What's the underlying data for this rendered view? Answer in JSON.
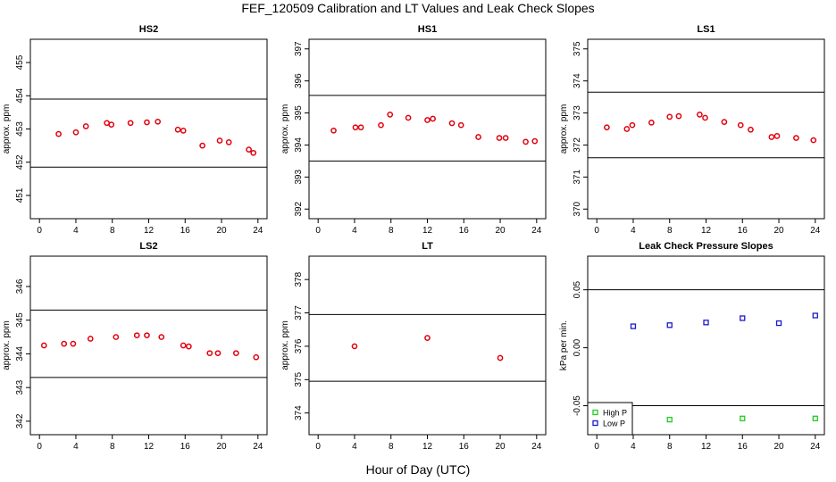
{
  "title": "FEF_120509  Calibration and LT Values and Leak Check Slopes",
  "xlabel": "Hour of Day (UTC)",
  "colors": {
    "marker_red": "#e0000d",
    "high_p": "#22cc22",
    "low_p": "#1a1acc",
    "axis": "#000000"
  },
  "chart_data": [
    {
      "type": "scatter",
      "title": "HS2",
      "ylabel": "approx. ppm",
      "xlim": [
        -1,
        25
      ],
      "ylim": [
        450.3,
        455.7
      ],
      "xticks": [
        0,
        4,
        8,
        12,
        16,
        20,
        24
      ],
      "yticks": [
        451,
        452,
        453,
        454,
        455
      ],
      "hlines": [
        451.85,
        453.9
      ],
      "series": [
        {
          "color": "#e0000d",
          "x": [
            2.1,
            4.0,
            5.1,
            7.4,
            7.9,
            10.0,
            11.8,
            13.0,
            15.2,
            15.8,
            17.9,
            19.8,
            20.8,
            23.0,
            23.5
          ],
          "y": [
            452.85,
            452.9,
            453.08,
            453.18,
            453.13,
            453.18,
            453.2,
            453.22,
            452.98,
            452.95,
            452.5,
            452.65,
            452.6,
            452.38,
            452.28
          ]
        }
      ]
    },
    {
      "type": "scatter",
      "title": "HS1",
      "ylabel": "approx. ppm",
      "xlim": [
        -1,
        25
      ],
      "ylim": [
        391.7,
        397.3
      ],
      "xticks": [
        0,
        4,
        8,
        12,
        16,
        20,
        24
      ],
      "yticks": [
        392,
        393,
        394,
        395,
        396,
        397
      ],
      "hlines": [
        393.5,
        395.55
      ],
      "series": [
        {
          "color": "#e0000d",
          "x": [
            1.7,
            4.1,
            4.7,
            6.9,
            7.9,
            9.9,
            12.0,
            12.6,
            14.7,
            15.7,
            17.6,
            19.9,
            20.6,
            22.8,
            23.8
          ],
          "y": [
            394.45,
            394.55,
            394.55,
            394.62,
            394.95,
            394.85,
            394.78,
            394.82,
            394.68,
            394.62,
            394.25,
            394.22,
            394.22,
            394.1,
            394.12
          ]
        }
      ]
    },
    {
      "type": "scatter",
      "title": "LS1",
      "ylabel": "approx. ppm",
      "xlim": [
        -1,
        25
      ],
      "ylim": [
        369.7,
        375.3
      ],
      "xticks": [
        0,
        4,
        8,
        12,
        16,
        20,
        24
      ],
      "yticks": [
        370,
        371,
        372,
        373,
        374,
        375
      ],
      "hlines": [
        371.6,
        373.65
      ],
      "series": [
        {
          "color": "#e0000d",
          "x": [
            1.1,
            3.3,
            3.9,
            6.0,
            8.0,
            9.0,
            11.3,
            11.9,
            14.0,
            15.8,
            16.9,
            19.2,
            19.8,
            21.9,
            23.8
          ],
          "y": [
            372.55,
            372.5,
            372.62,
            372.7,
            372.88,
            372.9,
            372.95,
            372.85,
            372.72,
            372.62,
            372.48,
            372.25,
            372.28,
            372.22,
            372.15
          ]
        }
      ]
    },
    {
      "type": "scatter",
      "title": "LS2",
      "ylabel": "approx. ppm",
      "xlim": [
        -1,
        25
      ],
      "ylim": [
        341.6,
        346.9
      ],
      "xticks": [
        0,
        4,
        8,
        12,
        16,
        20,
        24
      ],
      "yticks": [
        342,
        343,
        344,
        345,
        346
      ],
      "hlines": [
        343.3,
        345.3
      ],
      "series": [
        {
          "color": "#e0000d",
          "x": [
            0.5,
            2.7,
            3.7,
            5.6,
            8.4,
            10.7,
            11.8,
            13.4,
            15.8,
            16.4,
            18.7,
            19.6,
            21.6,
            23.8
          ],
          "y": [
            344.25,
            344.3,
            344.3,
            344.45,
            344.5,
            344.55,
            344.55,
            344.5,
            344.25,
            344.22,
            344.02,
            344.02,
            344.02,
            343.9
          ]
        }
      ]
    },
    {
      "type": "scatter",
      "title": "LT",
      "ylabel": "approx. ppm",
      "xlim": [
        -1,
        25
      ],
      "ylim": [
        373.35,
        378.7
      ],
      "xticks": [
        0,
        4,
        8,
        12,
        16,
        20,
        24
      ],
      "yticks": [
        374,
        375,
        376,
        377,
        378
      ],
      "hlines": [
        374.95,
        376.95
      ],
      "series": [
        {
          "color": "#e0000d",
          "x": [
            4.0,
            12.0,
            20.0
          ],
          "y": [
            376.0,
            376.25,
            375.65
          ]
        }
      ]
    },
    {
      "type": "scatter",
      "title": "Leak Check Pressure Slopes",
      "ylabel": "kPa per min.",
      "xlim": [
        -1,
        25
      ],
      "ylim": [
        -0.075,
        0.079
      ],
      "xticks": [
        0,
        4,
        8,
        12,
        16,
        20,
        24
      ],
      "yticks": [
        -0.05,
        0.0,
        0.05
      ],
      "ytick_labels": [
        "-0.05",
        "0.00",
        "0.05"
      ],
      "hlines": [
        -0.05,
        0.05
      ],
      "legend": {
        "placement": "bottom-left",
        "entries": [
          "High P",
          "Low P"
        ]
      },
      "series": [
        {
          "name": "High P",
          "color": "#22cc22",
          "x": [
            8,
            16,
            24
          ],
          "y": [
            -0.062,
            -0.061,
            -0.061
          ]
        },
        {
          "name": "Low P",
          "color": "#1a1acc",
          "x": [
            4,
            8,
            12,
            16,
            20,
            24
          ],
          "y": [
            0.0185,
            0.0195,
            0.0218,
            0.0255,
            0.0212,
            0.0278
          ]
        }
      ]
    }
  ]
}
